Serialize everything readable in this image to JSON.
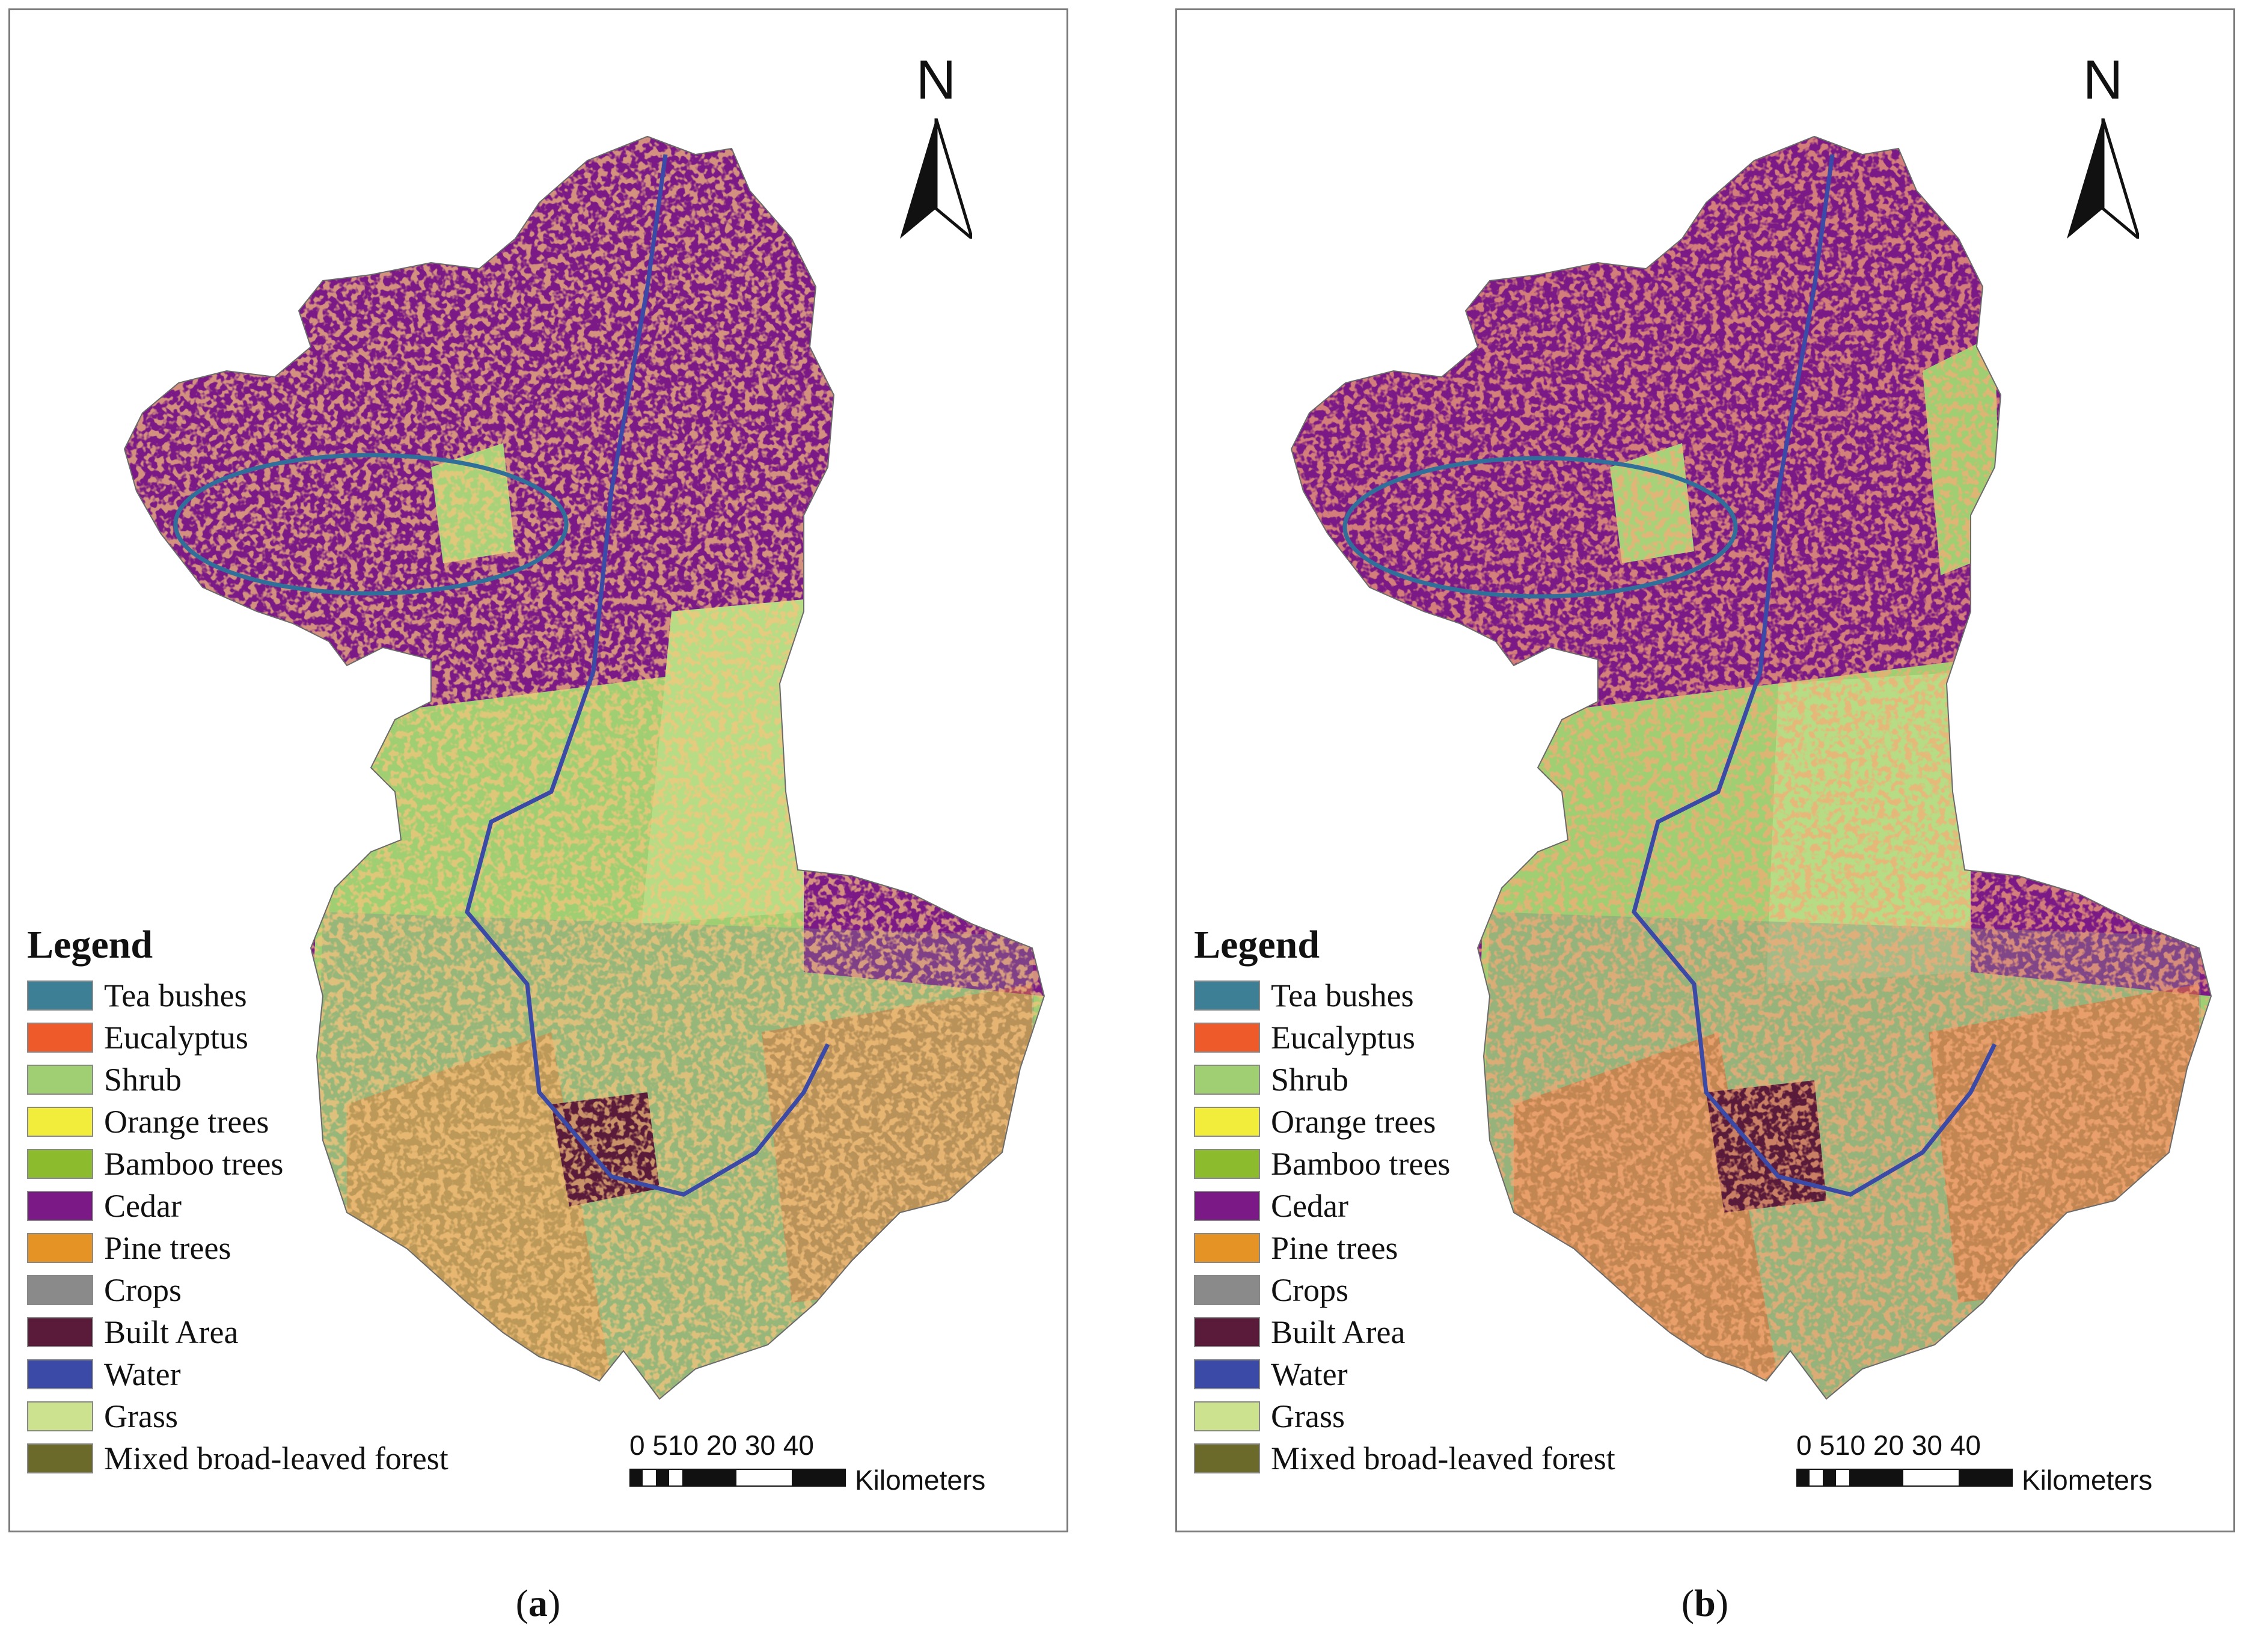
{
  "panels": [
    {
      "id": "a",
      "caption_letter": "a",
      "north_label": "N",
      "legend_title": "Legend",
      "scale_ticks": "0 510  20   30   40",
      "scale_unit": "Kilometers"
    },
    {
      "id": "b",
      "caption_letter": "b",
      "north_label": "N",
      "legend_title": "Legend",
      "scale_ticks": "0 510  20   30   40",
      "scale_unit": "Kilometers"
    }
  ],
  "legend_items": [
    {
      "label": "Tea bushes",
      "color": "#3d7f95"
    },
    {
      "label": "Eucalyptus",
      "color": "#ee5a2a"
    },
    {
      "label": "Shrub",
      "color": "#9fcf72"
    },
    {
      "label": "Orange trees",
      "color": "#f2ec3a"
    },
    {
      "label": "Bamboo trees",
      "color": "#8cbc2e"
    },
    {
      "label": "Cedar",
      "color": "#7b1a86"
    },
    {
      "label": "Pine trees",
      "color": "#e69325"
    },
    {
      "label": "Crops",
      "color": "#8a8a8a"
    },
    {
      "label": "Built Area",
      "color": "#5a1b3a"
    },
    {
      "label": "Water",
      "color": "#3a4aa6"
    },
    {
      "label": "Grass",
      "color": "#cde28e"
    },
    {
      "label": "Mixed broad-leaved forest",
      "color": "#6b6a2a"
    }
  ]
}
